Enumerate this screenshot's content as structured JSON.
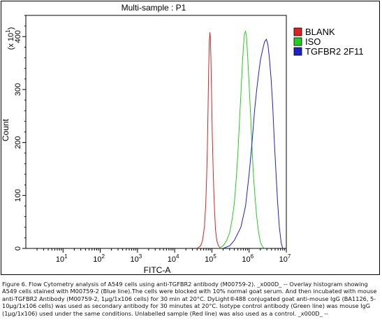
{
  "chart_data": {
    "type": "line",
    "title": "Multi-sample : P1",
    "xlabel": "FITC-A",
    "ylabel": "Count",
    "y_multiplier_label": "(x 10",
    "y_multiplier_exp": "1",
    "y_multiplier_close": ")",
    "xscale": "log",
    "xlim": [
      1,
      10000000
    ],
    "ylim": [
      0,
      440
    ],
    "grid": false,
    "legend_position": "top-right",
    "x_ticks": [
      {
        "base": "10",
        "exp": "1",
        "value": 10
      },
      {
        "base": "10",
        "exp": "2",
        "value": 100
      },
      {
        "base": "10",
        "exp": "3",
        "value": 1000
      },
      {
        "base": "10",
        "exp": "4",
        "value": 10000
      },
      {
        "base": "10",
        "exp": "5",
        "value": 100000
      },
      {
        "base": "10",
        "exp": "6",
        "value": 1000000
      },
      {
        "base": "10",
        "exp": "7",
        "value": 10000000
      }
    ],
    "y_ticks": [
      {
        "label": "0",
        "value": 0
      },
      {
        "label": "100",
        "value": 100
      },
      {
        "label": "200",
        "value": 200
      },
      {
        "label": "300",
        "value": 300
      },
      {
        "label": "400",
        "value": 400
      }
    ],
    "series": [
      {
        "name": "BLANK",
        "color": "#e02020",
        "points": [
          [
            40000,
            0
          ],
          [
            50000,
            5
          ],
          [
            56000,
            15
          ],
          [
            63000,
            40
          ],
          [
            68000,
            80
          ],
          [
            72000,
            130
          ],
          [
            76000,
            200
          ],
          [
            79000,
            270
          ],
          [
            82000,
            340
          ],
          [
            85000,
            390
          ],
          [
            88000,
            408
          ],
          [
            91000,
            400
          ],
          [
            94000,
            360
          ],
          [
            98000,
            290
          ],
          [
            102000,
            220
          ],
          [
            107000,
            160
          ],
          [
            112000,
            110
          ],
          [
            118000,
            70
          ],
          [
            125000,
            35
          ],
          [
            135000,
            15
          ],
          [
            150000,
            5
          ],
          [
            170000,
            0
          ]
        ]
      },
      {
        "name": "ISO",
        "color": "#20d020",
        "points": [
          [
            150000,
            0
          ],
          [
            200000,
            5
          ],
          [
            250000,
            15
          ],
          [
            300000,
            30
          ],
          [
            350000,
            55
          ],
          [
            400000,
            85
          ],
          [
            450000,
            130
          ],
          [
            500000,
            180
          ],
          [
            550000,
            240
          ],
          [
            600000,
            290
          ],
          [
            650000,
            340
          ],
          [
            700000,
            380
          ],
          [
            750000,
            405
          ],
          [
            800000,
            410
          ],
          [
            850000,
            400
          ],
          [
            900000,
            370
          ],
          [
            1000000,
            310
          ],
          [
            1100000,
            250
          ],
          [
            1200000,
            190
          ],
          [
            1300000,
            140
          ],
          [
            1450000,
            95
          ],
          [
            1600000,
            60
          ],
          [
            1800000,
            30
          ],
          [
            2000000,
            12
          ],
          [
            2300000,
            3
          ],
          [
            2600000,
            0
          ]
        ]
      },
      {
        "name": "TGFBR2 2F11",
        "color": "#2020c8",
        "points": [
          [
            200000,
            0
          ],
          [
            300000,
            5
          ],
          [
            400000,
            15
          ],
          [
            600000,
            40
          ],
          [
            800000,
            80
          ],
          [
            1000000,
            140
          ],
          [
            1200000,
            200
          ],
          [
            1400000,
            260
          ],
          [
            1600000,
            300
          ],
          [
            1800000,
            330
          ],
          [
            2000000,
            355
          ],
          [
            2300000,
            375
          ],
          [
            2600000,
            390
          ],
          [
            2900000,
            395
          ],
          [
            3200000,
            385
          ],
          [
            3500000,
            360
          ],
          [
            3900000,
            320
          ],
          [
            4300000,
            270
          ],
          [
            4700000,
            210
          ],
          [
            5200000,
            150
          ],
          [
            5800000,
            90
          ],
          [
            6500000,
            40
          ],
          [
            7300000,
            10
          ],
          [
            8000000,
            0
          ]
        ]
      }
    ]
  },
  "caption": "Figure 6. Flow Cytometry analysis of A549 cells using anti-TGFBR2 antibody (M00759-2). _x000D_ -- Overlay histogram showing A549 cells stained with M00759-2 (Blue line).The cells were blocked with 10% normal goat serum. And then incubated with mouse anti-TGFBR2 Antibody (M00759-2, 1µg/1x106 cells) for 30 min at 20°C. DyLight®488 conjugated goat anti-mouse IgG (BA1126, 5-10µg/1x106 cells) was used as secondary antibody for 30 minutes at 20°C. Isotype control antibody (Green line) was mouse IgG (1µg/1x106) used under the same conditions. Unlabelled sample (Red line) was also used as a control. _x000D_ --"
}
